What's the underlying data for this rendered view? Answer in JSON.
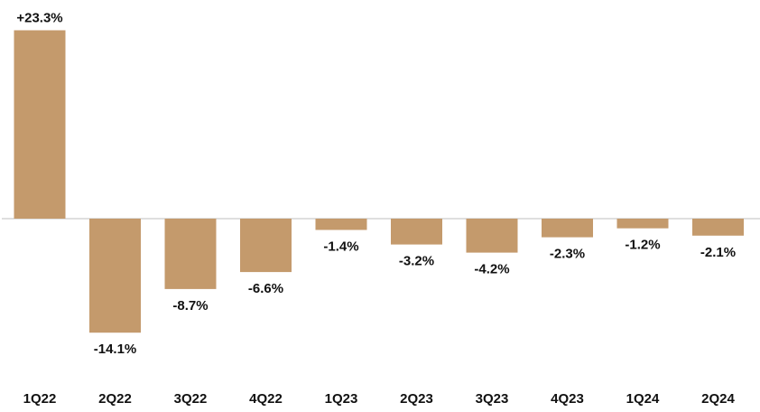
{
  "chart_data": {
    "type": "bar",
    "categories": [
      "1Q22",
      "2Q22",
      "3Q22",
      "4Q22",
      "1Q23",
      "2Q23",
      "3Q23",
      "4Q23",
      "1Q24",
      "2Q24"
    ],
    "values": [
      23.3,
      -14.1,
      -8.7,
      -6.6,
      -1.4,
      -3.2,
      -4.2,
      -2.3,
      -1.2,
      -2.1
    ],
    "data_labels": [
      "+23.3%",
      "-14.1%",
      "-8.7%",
      "-6.6%",
      "-1.4%",
      "-3.2%",
      "-4.2%",
      "-2.3%",
      "-1.2%",
      "-2.1%"
    ],
    "title": "",
    "xlabel": "",
    "ylabel": "",
    "ylim": [
      -14.1,
      23.3
    ],
    "grid": false,
    "legend": "none",
    "colors": {
      "bar": "#C49A6C",
      "baseline": "#BFBFBF",
      "text": "#111111"
    }
  }
}
